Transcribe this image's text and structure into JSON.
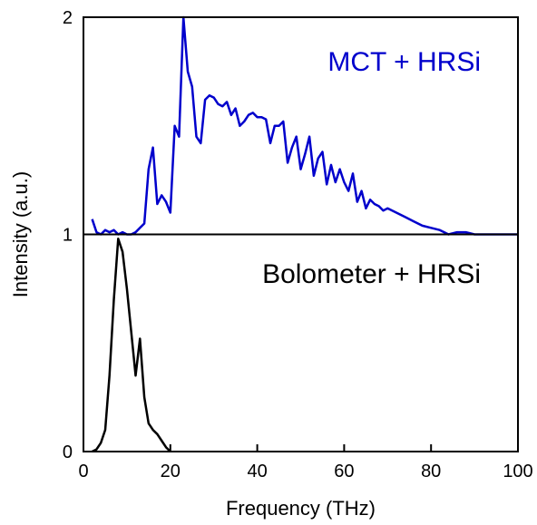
{
  "chart_data": {
    "type": "line",
    "xlabel": "Frequency (THz)",
    "ylabel": "Intensity (a.u.)",
    "xlim": [
      0,
      100
    ],
    "ylim": [
      0,
      2
    ],
    "xticks": [
      0,
      20,
      40,
      60,
      80,
      100
    ],
    "yticks": [
      0,
      1,
      2
    ],
    "xtick_labels": [
      "0",
      "20",
      "40",
      "60",
      "80",
      "100"
    ],
    "ytick_labels": [
      "0",
      "1",
      "2"
    ],
    "divider_at": 1,
    "grid": false,
    "series": [
      {
        "name": "MCT + HRSi",
        "color": "#0000cc",
        "label_position": "top-right",
        "x": [
          2,
          3,
          4,
          5,
          6,
          7,
          8,
          9,
          10,
          11,
          12,
          13,
          14,
          15,
          16,
          17,
          18,
          19,
          20,
          21,
          22,
          23,
          24,
          25,
          26,
          27,
          28,
          29,
          30,
          31,
          32,
          33,
          34,
          35,
          36,
          37,
          38,
          39,
          40,
          41,
          42,
          43,
          44,
          45,
          46,
          47,
          48,
          49,
          50,
          51,
          52,
          53,
          54,
          55,
          56,
          57,
          58,
          59,
          60,
          61,
          62,
          63,
          64,
          65,
          66,
          67,
          68,
          69,
          70,
          72,
          74,
          76,
          78,
          80,
          82,
          84,
          86,
          88,
          90,
          92,
          94,
          96,
          98,
          100
        ],
        "y": [
          1.07,
          1.01,
          1.0,
          1.02,
          1.01,
          1.02,
          1.0,
          1.01,
          1.0,
          1.0,
          1.01,
          1.03,
          1.05,
          1.3,
          1.4,
          1.14,
          1.18,
          1.15,
          1.1,
          1.5,
          1.45,
          2.0,
          1.75,
          1.68,
          1.45,
          1.42,
          1.62,
          1.64,
          1.63,
          1.6,
          1.59,
          1.61,
          1.55,
          1.58,
          1.5,
          1.52,
          1.55,
          1.56,
          1.54,
          1.54,
          1.53,
          1.42,
          1.5,
          1.5,
          1.52,
          1.33,
          1.4,
          1.45,
          1.3,
          1.37,
          1.45,
          1.27,
          1.35,
          1.38,
          1.23,
          1.32,
          1.24,
          1.3,
          1.24,
          1.2,
          1.28,
          1.15,
          1.2,
          1.12,
          1.16,
          1.14,
          1.13,
          1.11,
          1.12,
          1.1,
          1.08,
          1.06,
          1.04,
          1.03,
          1.02,
          1.0,
          1.01,
          1.01,
          1.0,
          1.0,
          1.0,
          1.0,
          1.0,
          1.0
        ]
      },
      {
        "name": "Bolometer + HRSi",
        "color": "#000000",
        "label_position": "right",
        "x": [
          2,
          3,
          4,
          5,
          6,
          7,
          8,
          9,
          10,
          11,
          12,
          13,
          14,
          15,
          16,
          17,
          18,
          19,
          20
        ],
        "y": [
          0.0,
          0.01,
          0.04,
          0.1,
          0.35,
          0.7,
          0.98,
          0.92,
          0.75,
          0.55,
          0.35,
          0.52,
          0.25,
          0.13,
          0.1,
          0.08,
          0.05,
          0.02,
          0.0
        ]
      }
    ]
  }
}
